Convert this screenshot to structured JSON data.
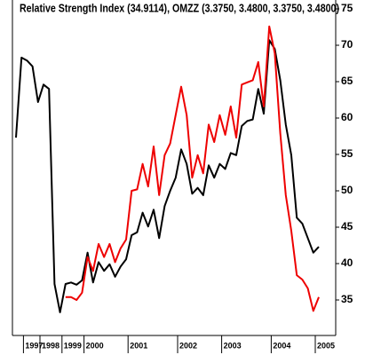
{
  "chart_data": {
    "type": "line",
    "title": "Relative Strength Index (34.9114), OMZZ (3.3750, 3.4800, 3.3750, 3.4800)",
    "categories": [
      null,
      null,
      "1997",
      null,
      null,
      "1998",
      null,
      null,
      null,
      "1999",
      null,
      null,
      null,
      "2000",
      null,
      null,
      null,
      null,
      null,
      null,
      null,
      "2001",
      null,
      null,
      null,
      null,
      null,
      null,
      null,
      null,
      "2002",
      null,
      null,
      null,
      null,
      null,
      null,
      null,
      "2003",
      null,
      null,
      null,
      null,
      null,
      null,
      null,
      null,
      "2004",
      null,
      null,
      null,
      null,
      null,
      null,
      null,
      "2005"
    ],
    "series": [
      {
        "name": "OMZZ",
        "color": "#000000",
        "values": [
          57.3,
          68.3,
          67.9,
          67.1,
          62.2,
          64.6,
          64.0,
          37.2,
          33.3,
          37.2,
          37.4,
          37.1,
          37.7,
          41.5,
          37.4,
          40.2,
          39.0,
          39.9,
          38.2,
          39.6,
          40.6,
          43.9,
          44.3,
          47.0,
          45.1,
          47.4,
          43.5,
          47.9,
          50.0,
          51.8,
          55.7,
          53.7,
          49.6,
          50.4,
          49.4,
          53.5,
          51.8,
          53.7,
          53.0,
          55.2,
          54.9,
          58.9,
          59.6,
          59.8,
          64.0,
          60.6,
          70.7,
          69.5,
          65.2,
          59.1,
          54.9,
          46.3,
          45.5,
          43.5,
          41.5,
          42.3
        ]
      },
      {
        "name": "Relative Strength Index",
        "color": "#ee0000",
        "values": [
          null,
          null,
          null,
          null,
          null,
          null,
          null,
          null,
          null,
          35.4,
          35.4,
          35.0,
          36.0,
          40.9,
          39.0,
          42.7,
          40.9,
          42.7,
          40.2,
          42.1,
          43.3,
          50.0,
          50.2,
          53.7,
          50.6,
          56.1,
          49.4,
          54.9,
          56.5,
          60.4,
          64.3,
          60.4,
          51.8,
          54.9,
          52.4,
          59.1,
          56.7,
          60.4,
          57.7,
          61.6,
          57.3,
          64.6,
          64.9,
          65.2,
          67.7,
          61.6,
          72.6,
          68.9,
          57.9,
          49.4,
          44.5,
          38.4,
          37.8,
          36.6,
          33.5,
          35.4
        ]
      }
    ],
    "ylim": [
      30,
      75.5
    ],
    "yticks": [
      35,
      40,
      45,
      50,
      55,
      60,
      65,
      70,
      75
    ]
  }
}
